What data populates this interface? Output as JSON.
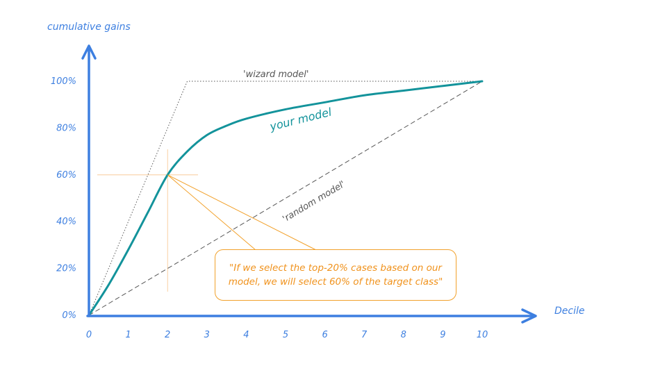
{
  "chart_data": {
    "type": "line",
    "xlabel": "Decile",
    "ylabel": "cumulative gains",
    "xlim": [
      0,
      10
    ],
    "ylim": [
      0,
      100
    ],
    "x_ticks": [
      "0",
      "1",
      "2",
      "3",
      "4",
      "5",
      "6",
      "7",
      "8",
      "9",
      "10"
    ],
    "y_ticks": [
      "0%",
      "20%",
      "40%",
      "60%",
      "80%",
      "100%"
    ],
    "series": [
      {
        "name": "your model",
        "x": [
          0,
          0.5,
          1,
          1.5,
          2,
          2.5,
          3,
          3.5,
          4,
          5,
          6,
          7,
          8,
          9,
          10
        ],
        "y": [
          0,
          13,
          28,
          44,
          60,
          70,
          77,
          81,
          84,
          88,
          91,
          94,
          96,
          98,
          100
        ]
      },
      {
        "name": "'wizard model'",
        "x": [
          0,
          2.5,
          10
        ],
        "y": [
          0,
          100,
          100
        ]
      },
      {
        "name": "'random model'",
        "x": [
          0,
          10
        ],
        "y": [
          0,
          100
        ]
      }
    ],
    "annotations": [
      {
        "text": "\"If we select the top-20% cases based on our model, we will select 60% of the target class\"",
        "point": [
          2,
          60
        ]
      }
    ],
    "grid": false,
    "colors": {
      "axis": "#3d7fe0",
      "your_model": "#13939b",
      "reference": "#555555",
      "annotation": "#f2a12b"
    }
  }
}
